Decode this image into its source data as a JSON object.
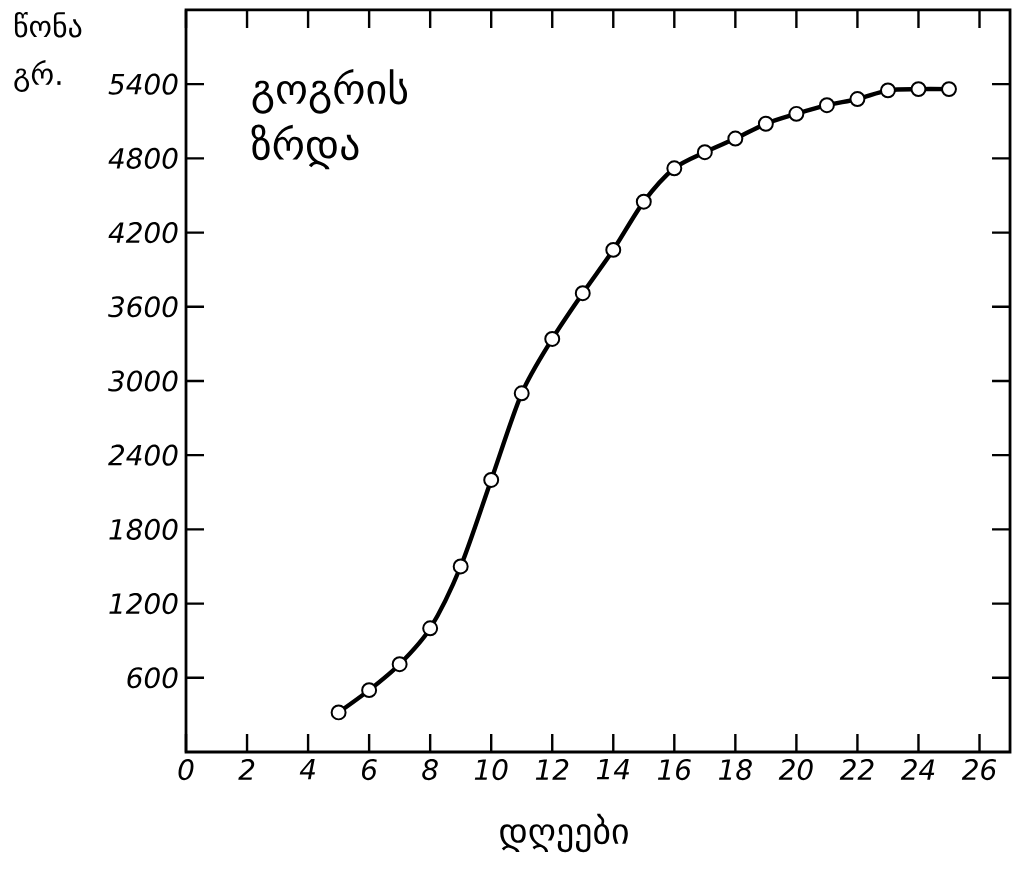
{
  "chart_data": {
    "type": "line",
    "title": "გოგრის ზრდა",
    "xlabel": "დღეები",
    "ylabel": "წონა გრ.",
    "x": [
      5,
      6,
      7,
      8,
      9,
      10,
      11,
      12,
      13,
      14,
      15,
      16,
      17,
      18,
      19,
      20,
      21,
      22,
      23,
      24,
      25
    ],
    "values": [
      320,
      500,
      710,
      1000,
      1500,
      2200,
      2900,
      3340,
      3710,
      4060,
      4450,
      4720,
      4850,
      4960,
      5080,
      5160,
      5230,
      5280,
      5350,
      5360,
      5360
    ],
    "color": "#000000",
    "marker": "circle",
    "line_style": "solid",
    "xlim": [
      0,
      27
    ],
    "ylim": [
      0,
      6000
    ],
    "xticks": [
      0,
      2,
      4,
      6,
      8,
      10,
      12,
      14,
      16,
      18,
      20,
      22,
      24,
      26
    ],
    "yticks": [
      600,
      1200,
      1800,
      2400,
      3000,
      3600,
      4200,
      4800,
      5400
    ]
  }
}
